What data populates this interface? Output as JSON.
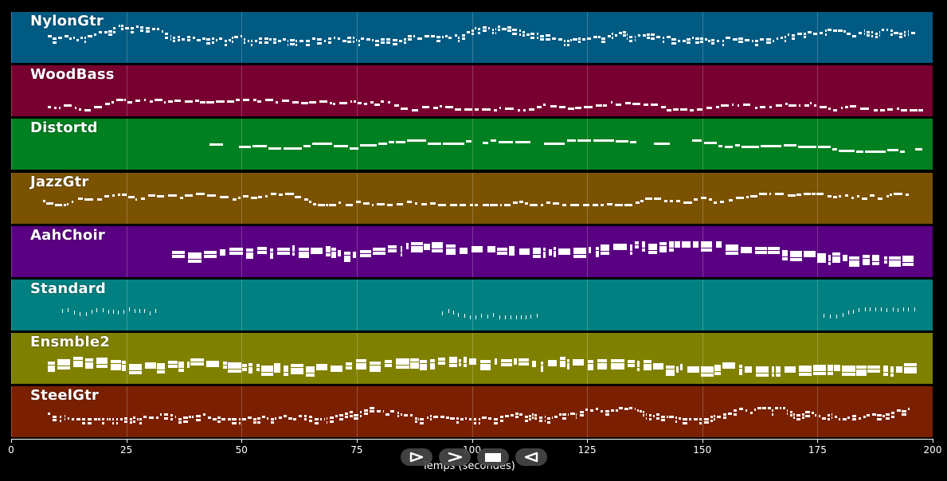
{
  "x_axis": {
    "label": "Temps (secondes)",
    "range": [
      0,
      200
    ],
    "ticks": [
      0,
      25,
      50,
      75,
      100,
      125,
      150,
      175,
      200
    ]
  },
  "tracks": [
    {
      "name": "NylonGtr",
      "color": "#005a82",
      "range": [
        8,
        196
      ],
      "density": "dense",
      "pitch_band": [
        0.25,
        0.55
      ]
    },
    {
      "name": "WoodBass",
      "color": "#780030",
      "range": [
        8,
        197
      ],
      "density": "medium",
      "pitch_band": [
        0.65,
        0.85
      ]
    },
    {
      "name": "Distortd",
      "color": "#008020",
      "range": [
        43,
        197
      ],
      "density": "sparse-long",
      "pitch_band": [
        0.4,
        0.62
      ]
    },
    {
      "name": "JazzGtr",
      "color": "#7a5200",
      "range": [
        7,
        195
      ],
      "density": "medium",
      "pitch_band": [
        0.4,
        0.62
      ]
    },
    {
      "name": "AahChoir",
      "color": "#5a0082",
      "range": [
        35,
        195
      ],
      "density": "chords",
      "pitch_band": [
        0.3,
        0.6
      ]
    },
    {
      "name": "Standard",
      "color": "#008080",
      "range": [
        11,
        196
      ],
      "density": "drums",
      "pitch_band": [
        0.55,
        0.7
      ]
    },
    {
      "name": "Ensmble2",
      "color": "#808000",
      "range": [
        8,
        195
      ],
      "density": "chords",
      "pitch_band": [
        0.4,
        0.65
      ]
    },
    {
      "name": "SteelGtr",
      "color": "#7a2000",
      "range": [
        8,
        195
      ],
      "density": "dense",
      "pitch_band": [
        0.4,
        0.62
      ]
    }
  ],
  "controls": [
    {
      "name": "play-button",
      "icon": "play-icon"
    },
    {
      "name": "fast-forward-button",
      "icon": "fast-forward-icon"
    },
    {
      "name": "stop-button",
      "icon": "stop-icon"
    },
    {
      "name": "rewind-button",
      "icon": "rewind-icon"
    }
  ]
}
